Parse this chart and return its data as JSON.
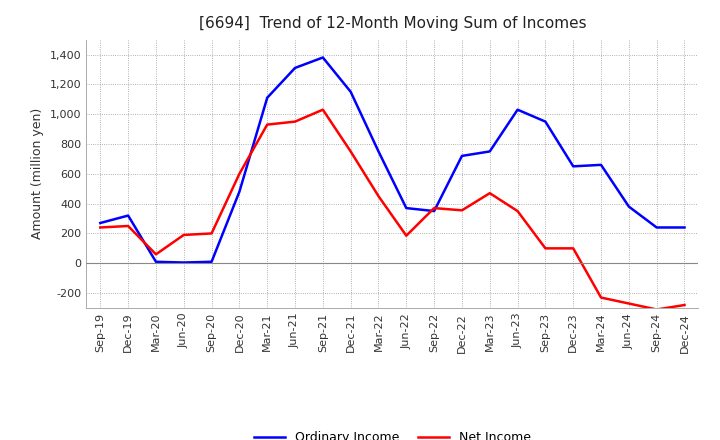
{
  "title": "[6694]  Trend of 12-Month Moving Sum of Incomes",
  "ylabel": "Amount (million yen)",
  "x_labels": [
    "Sep-19",
    "Dec-19",
    "Mar-20",
    "Jun-20",
    "Sep-20",
    "Dec-20",
    "Mar-21",
    "Jun-21",
    "Sep-21",
    "Dec-21",
    "Mar-22",
    "Jun-22",
    "Sep-22",
    "Dec-22",
    "Mar-23",
    "Jun-23",
    "Sep-23",
    "Dec-23",
    "Mar-24",
    "Jun-24",
    "Sep-24",
    "Dec-24"
  ],
  "ordinary_income": [
    270,
    320,
    10,
    5,
    10,
    480,
    1110,
    1310,
    1380,
    1150,
    750,
    370,
    350,
    720,
    750,
    1030,
    950,
    650,
    660,
    380,
    240,
    240
  ],
  "net_income": [
    240,
    250,
    60,
    190,
    200,
    600,
    930,
    950,
    1030,
    750,
    450,
    185,
    370,
    355,
    470,
    350,
    100,
    100,
    -230,
    -270,
    -310,
    -280
  ],
  "ordinary_color": "#0000ff",
  "net_color": "#ff0000",
  "ylim": [
    -300,
    1500
  ],
  "yticks": [
    -200,
    0,
    200,
    400,
    600,
    800,
    1000,
    1200,
    1400
  ],
  "background_color": "#ffffff",
  "grid_color": "#aaaaaa",
  "title_fontsize": 11,
  "axis_label_fontsize": 9,
  "tick_fontsize": 8,
  "legend_labels": [
    "Ordinary Income",
    "Net Income"
  ],
  "legend_fontsize": 9
}
